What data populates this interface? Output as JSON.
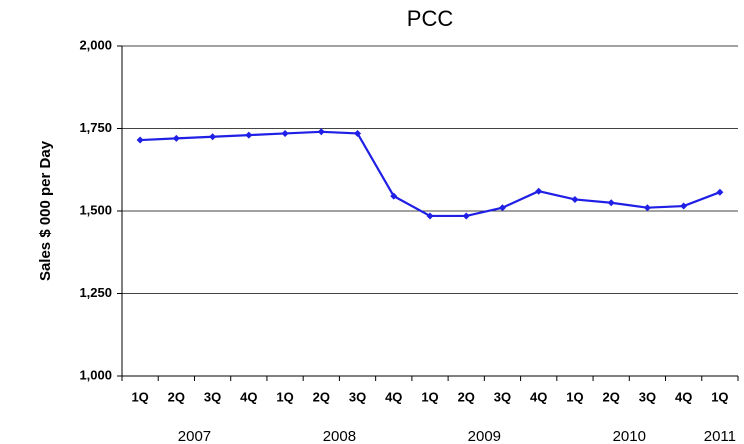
{
  "chart_data": {
    "type": "line",
    "title": "PCC",
    "y_label": "Sales $ 000 per Day",
    "categories": [
      "1Q",
      "2Q",
      "3Q",
      "4Q",
      "1Q",
      "2Q",
      "3Q",
      "4Q",
      "1Q",
      "2Q",
      "3Q",
      "4Q",
      "1Q",
      "2Q",
      "3Q",
      "4Q",
      "1Q"
    ],
    "x_groups": [
      "2007",
      "2008",
      "2009",
      "2010",
      "2011"
    ],
    "series": [
      {
        "name": "PCC",
        "color": "#1f1fe6",
        "values": [
          1715,
          1720,
          1725,
          1730,
          1735,
          1740,
          1735,
          1545,
          1485,
          1485,
          1510,
          1560,
          1535,
          1525,
          1510,
          1515,
          1557
        ]
      }
    ],
    "ylim": [
      1000,
      2000
    ],
    "yticks": [
      {
        "value": 1000,
        "label": "1,000"
      },
      {
        "value": 1250,
        "label": "1,250"
      },
      {
        "value": 1500,
        "label": "1,500"
      },
      {
        "value": 1750,
        "label": "1,750"
      },
      {
        "value": 2000,
        "label": "2,000"
      }
    ],
    "grid": true
  }
}
